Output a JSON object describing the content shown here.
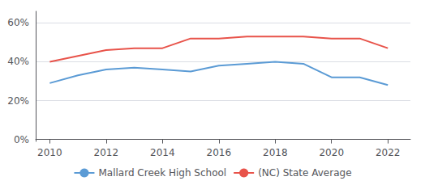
{
  "chart_data": {
    "type": "line",
    "x": [
      2010,
      2011,
      2012,
      2013,
      2014,
      2015,
      2016,
      2017,
      2018,
      2019,
      2020,
      2021,
      2022
    ],
    "series": [
      {
        "name": "Mallard Creek High School",
        "color": "#5b9bd5",
        "values": [
          0.29,
          0.33,
          0.36,
          0.37,
          0.36,
          0.35,
          0.38,
          0.39,
          0.4,
          0.39,
          0.32,
          0.32,
          0.28
        ]
      },
      {
        "name": "(NC) State Average",
        "color": "#e8534a",
        "values": [
          0.4,
          0.43,
          0.46,
          0.47,
          0.47,
          0.52,
          0.52,
          0.53,
          0.53,
          0.53,
          0.52,
          0.52,
          0.47
        ]
      }
    ],
    "xlim": [
      2009.5,
      2022.8
    ],
    "xticks": [
      2010,
      2012,
      2014,
      2016,
      2018,
      2020,
      2022
    ],
    "ylim": [
      -0.01,
      0.66
    ],
    "yticks": [
      {
        "value": 0,
        "label": "0%"
      },
      {
        "value": 0.2,
        "label": "20%"
      },
      {
        "value": 0.4,
        "label": "40%"
      },
      {
        "value": 0.6,
        "label": "60%"
      }
    ],
    "grid": true,
    "legend": "bottom"
  }
}
